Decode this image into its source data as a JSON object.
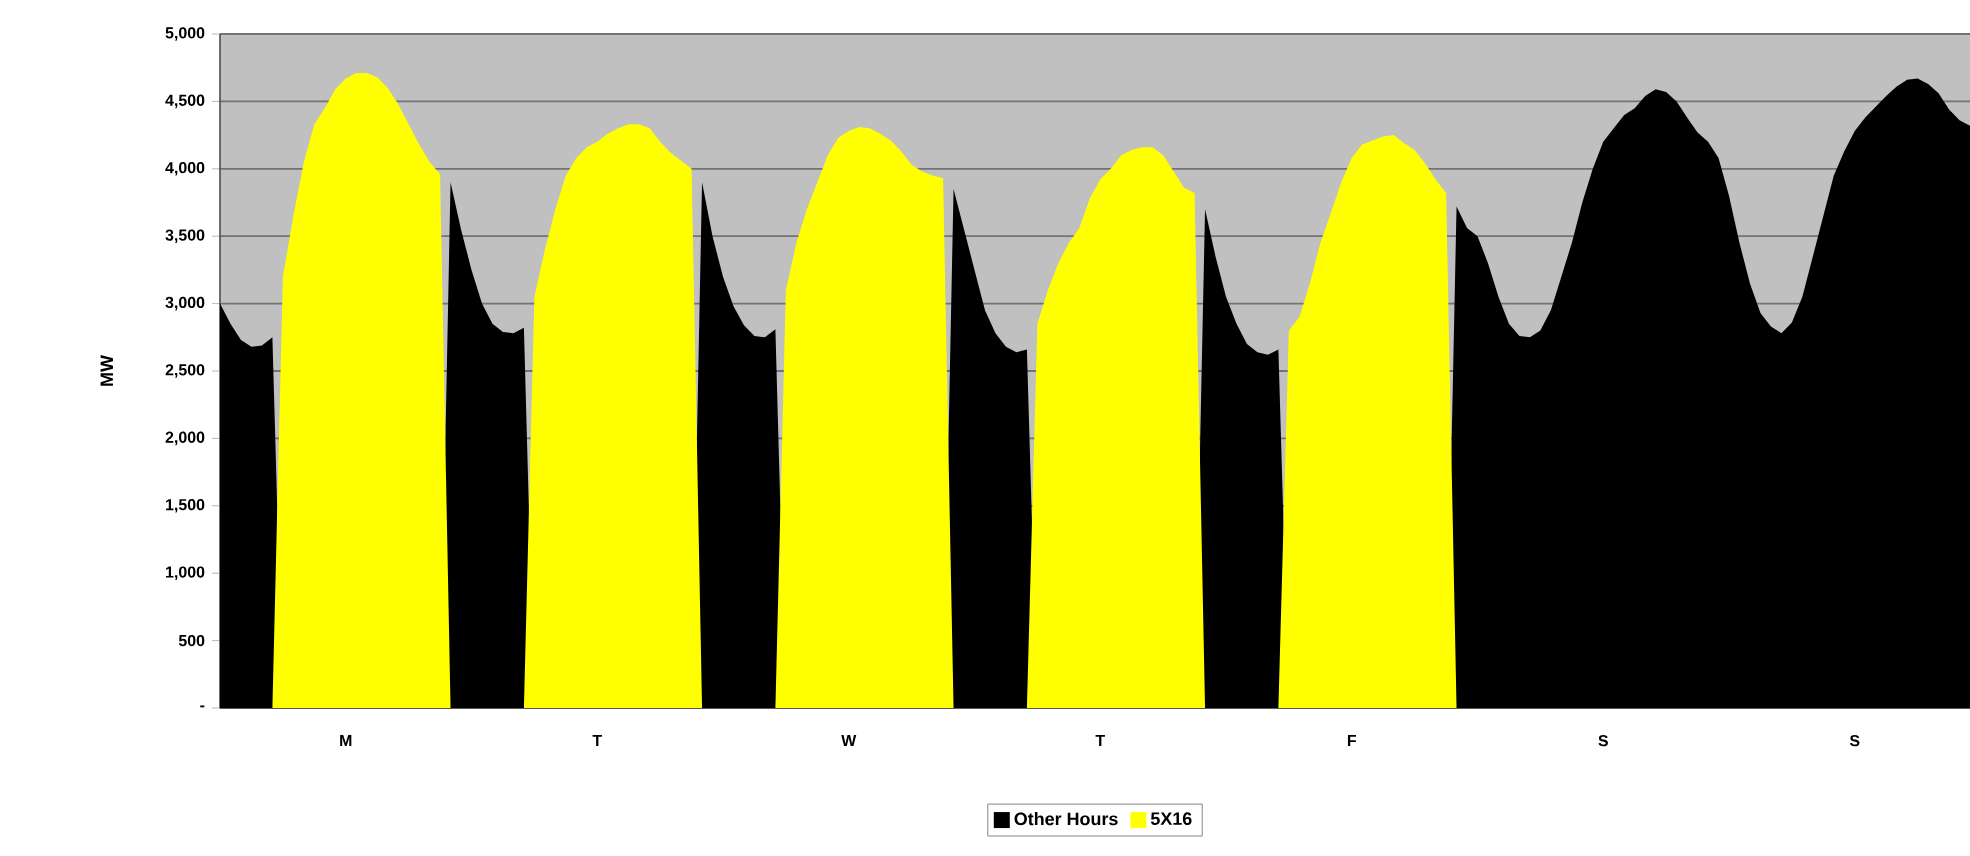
{
  "chart_data": {
    "type": "area",
    "ylabel": "MW",
    "categories": [
      null,
      null,
      null,
      null,
      null,
      null,
      null,
      null,
      null,
      null,
      null,
      null,
      "M",
      null,
      null,
      null,
      null,
      null,
      null,
      null,
      null,
      null,
      null,
      null,
      null,
      null,
      null,
      null,
      null,
      null,
      null,
      null,
      null,
      null,
      null,
      null,
      "T",
      null,
      null,
      null,
      null,
      null,
      null,
      null,
      null,
      null,
      null,
      null,
      null,
      null,
      null,
      null,
      null,
      null,
      null,
      null,
      null,
      null,
      null,
      null,
      "W",
      null,
      null,
      null,
      null,
      null,
      null,
      null,
      null,
      null,
      null,
      null,
      null,
      null,
      null,
      null,
      null,
      null,
      null,
      null,
      null,
      null,
      null,
      null,
      "T",
      null,
      null,
      null,
      null,
      null,
      null,
      null,
      null,
      null,
      null,
      null,
      null,
      null,
      null,
      null,
      null,
      null,
      null,
      null,
      null,
      null,
      null,
      null,
      "F",
      null,
      null,
      null,
      null,
      null,
      null,
      null,
      null,
      null,
      null,
      null,
      null,
      null,
      null,
      null,
      null,
      null,
      null,
      null,
      null,
      null,
      null,
      null,
      "S",
      null,
      null,
      null,
      null,
      null,
      null,
      null,
      null,
      null,
      null,
      null,
      null,
      null,
      null,
      null,
      null,
      null,
      null,
      null,
      null,
      null,
      null,
      null,
      "S",
      null,
      null,
      null,
      null,
      null,
      null,
      null,
      null,
      null,
      null,
      null
    ],
    "series": [
      {
        "name": "Other Hours",
        "color": "#000000",
        "values": [
          3000,
          2850,
          2730,
          2680,
          2690,
          2750,
          0,
          0,
          0,
          0,
          0,
          0,
          0,
          0,
          0,
          0,
          0,
          0,
          0,
          0,
          0,
          0,
          3900,
          3550,
          3250,
          3000,
          2850,
          2790,
          2780,
          2820,
          0,
          0,
          0,
          0,
          0,
          0,
          0,
          0,
          0,
          0,
          0,
          0,
          0,
          0,
          0,
          0,
          3900,
          3500,
          3200,
          2980,
          2840,
          2760,
          2750,
          2810,
          0,
          0,
          0,
          0,
          0,
          0,
          0,
          0,
          0,
          0,
          0,
          0,
          0,
          0,
          0,
          0,
          3850,
          3550,
          3250,
          2950,
          2780,
          2680,
          2640,
          2660,
          0,
          0,
          0,
          0,
          0,
          0,
          0,
          0,
          0,
          0,
          0,
          0,
          0,
          0,
          0,
          0,
          3700,
          3350,
          3050,
          2850,
          2700,
          2640,
          2620,
          2660,
          0,
          0,
          0,
          0,
          0,
          0,
          0,
          0,
          0,
          0,
          0,
          0,
          0,
          0,
          0,
          0,
          3720,
          3560,
          3500,
          3300,
          3050,
          2850,
          2760,
          2750,
          2800,
          2950,
          3200,
          3450,
          3750,
          4000,
          4200,
          4300,
          4400,
          4450,
          4540,
          4590,
          4570,
          4500,
          4380,
          4270,
          4200,
          4080,
          3800,
          3450,
          3150,
          2930,
          2830,
          2780,
          2860,
          3050,
          3350,
          3650,
          3950,
          4130,
          4280,
          4380,
          4460,
          4540,
          4610,
          4660,
          4670,
          4630,
          4560,
          4440,
          4360,
          4320
        ]
      },
      {
        "name": "5X16",
        "color": "#ffff00",
        "values": [
          0,
          0,
          0,
          0,
          0,
          0,
          3200,
          3650,
          4050,
          4330,
          4450,
          4590,
          4670,
          4710,
          4710,
          4680,
          4600,
          4480,
          4330,
          4180,
          4050,
          3960,
          0,
          0,
          0,
          0,
          0,
          0,
          0,
          0,
          3050,
          3400,
          3700,
          3950,
          4080,
          4160,
          4200,
          4260,
          4300,
          4330,
          4330,
          4300,
          4200,
          4120,
          4060,
          4000,
          0,
          0,
          0,
          0,
          0,
          0,
          0,
          0,
          3100,
          3450,
          3700,
          3900,
          4100,
          4230,
          4280,
          4310,
          4300,
          4260,
          4210,
          4130,
          4030,
          3980,
          3950,
          3930,
          0,
          0,
          0,
          0,
          0,
          0,
          0,
          0,
          2850,
          3100,
          3300,
          3450,
          3560,
          3780,
          3920,
          4000,
          4100,
          4140,
          4160,
          4160,
          4100,
          3980,
          3860,
          3820,
          0,
          0,
          0,
          0,
          0,
          0,
          0,
          0,
          2800,
          2900,
          3150,
          3450,
          3670,
          3900,
          4080,
          4180,
          4210,
          4240,
          4250,
          4190,
          4140,
          4040,
          3920,
          3820,
          0,
          0,
          0,
          0,
          0,
          0,
          0,
          0,
          0,
          0,
          0,
          0,
          0,
          0,
          0,
          0,
          0,
          0,
          0,
          0,
          0,
          0,
          0,
          0,
          0,
          0,
          0,
          0,
          0,
          0,
          0,
          0,
          0,
          0,
          0,
          0,
          0,
          0,
          0,
          0,
          0,
          0,
          0,
          0,
          0,
          0,
          0,
          0,
          0,
          0
        ]
      }
    ],
    "ylim": [
      0,
      5000
    ],
    "yticks": [
      {
        "value": 0,
        "label": "-"
      },
      500,
      {
        "value": 1000,
        "label": "1,000"
      },
      {
        "value": 1500,
        "label": "1,500"
      },
      {
        "value": 2000,
        "label": "2,000"
      },
      {
        "value": 2500,
        "label": "2,500"
      },
      {
        "value": 3000,
        "label": "3,000"
      },
      {
        "value": 3500,
        "label": "3,500"
      },
      {
        "value": 4000,
        "label": "4,000"
      },
      {
        "value": 4500,
        "label": "4,500"
      },
      {
        "value": 5000,
        "label": "5,000"
      }
    ],
    "grid": "y",
    "legend": "bottom"
  }
}
